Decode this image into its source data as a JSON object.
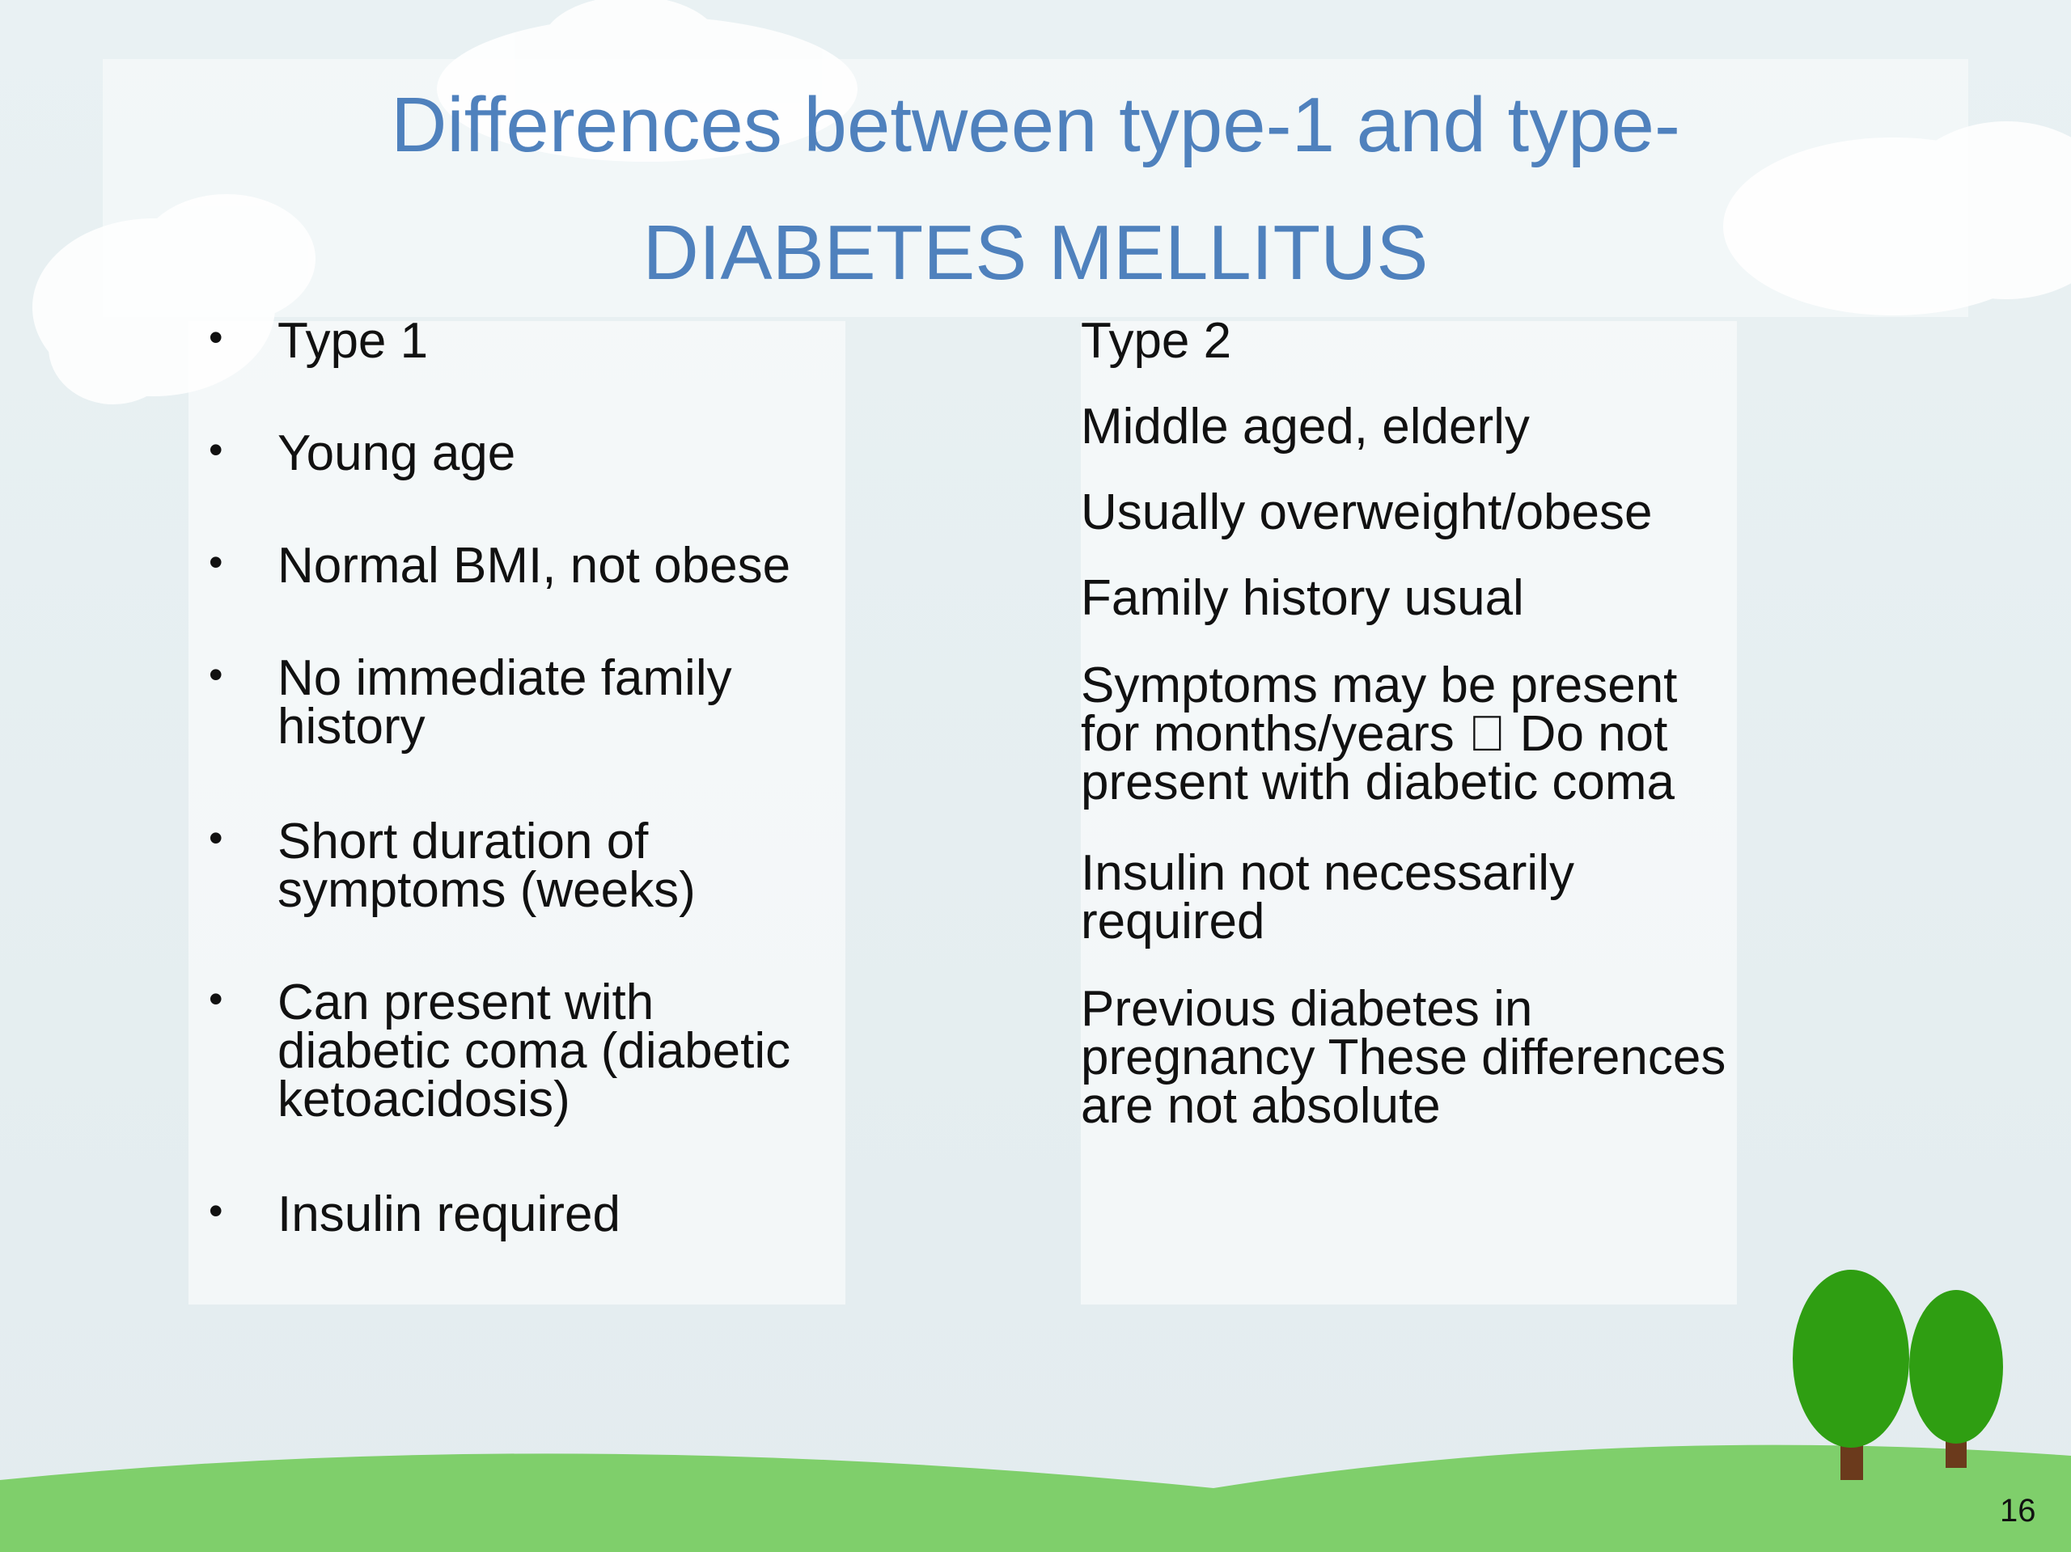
{
  "title": {
    "line1": "Differences between type-1 and type-",
    "line2": "DIABETES MELLITUS"
  },
  "left": {
    "items": [
      "Type 1",
      "Young age",
      "Normal BMI, not obese",
      "No immediate family history",
      "Short duration of symptoms (weeks)",
      "Can present with diabetic coma (diabetic ketoacidosis)",
      "Insulin required"
    ]
  },
  "right": {
    "items": [
      "Type 2",
      "Middle aged, elderly",
      "Usually overweight/obese",
      "Family history usual",
      "Symptoms may be present for months/years  Do not present with diabetic coma",
      "Insulin not necessarily required",
      "Previous diabetes in pregnancy These differences are not absolute"
    ]
  },
  "page_number": "16"
}
